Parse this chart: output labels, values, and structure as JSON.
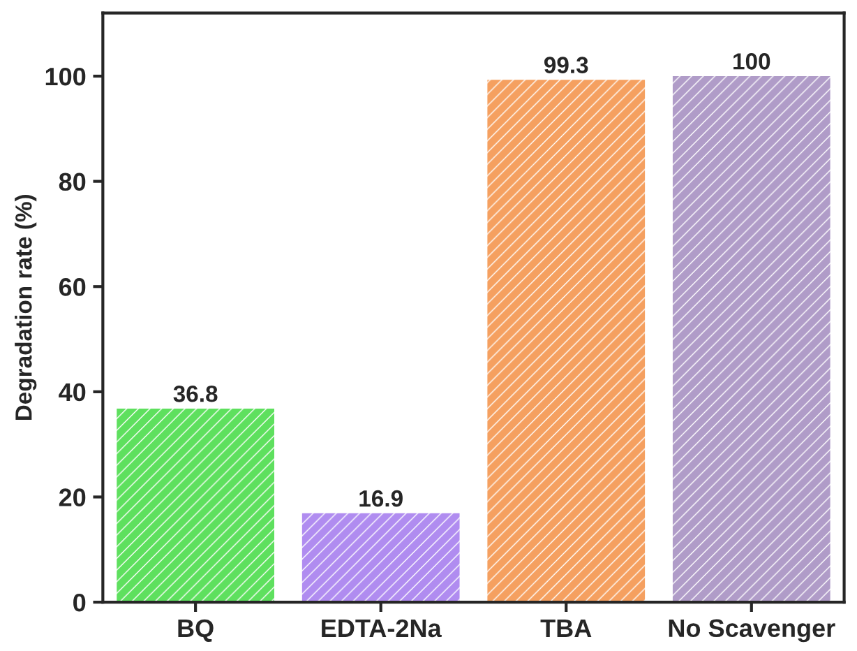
{
  "chart_data": {
    "type": "bar",
    "ylabel": "Degradation rate (%)",
    "categories": [
      "BQ",
      "EDTA-2Na",
      "TBA",
      "No Scavenger"
    ],
    "values": [
      36.8,
      16.9,
      99.3,
      100
    ],
    "colors": [
      "#5ee05e",
      "#b08cf0",
      "#f5a060",
      "#b09cc8"
    ],
    "ylim": [
      0,
      112
    ],
    "yticks": [
      0,
      20,
      40,
      60,
      80,
      100
    ],
    "data_labels": true,
    "grid": false,
    "legend": false
  }
}
